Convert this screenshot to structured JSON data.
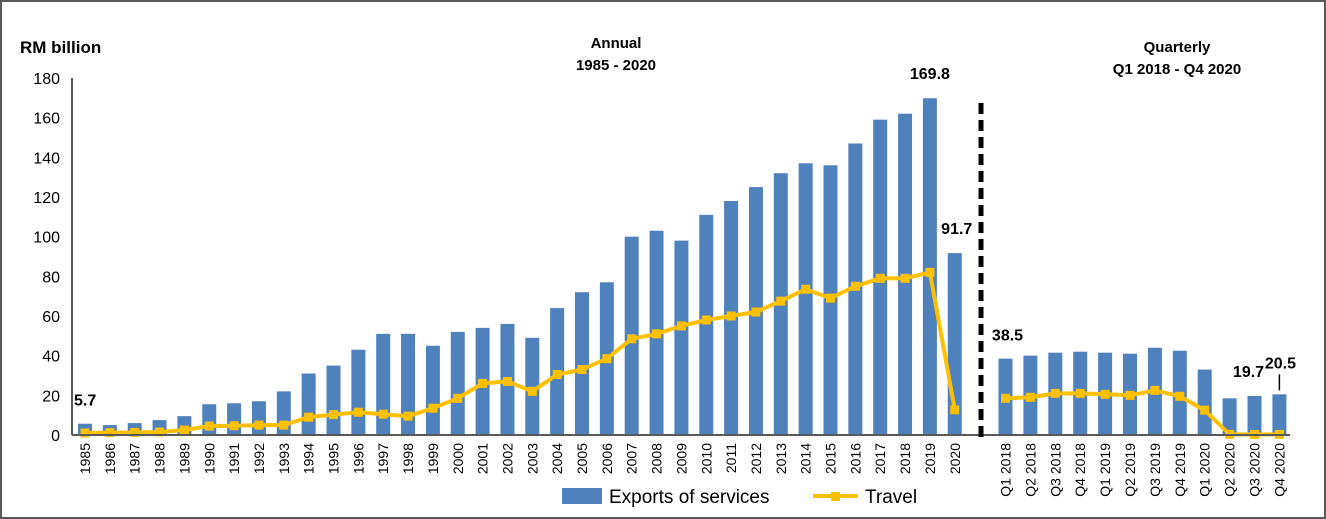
{
  "chart_data": {
    "type": "bar",
    "unit_label": "RM billion",
    "ylim": [
      0,
      180
    ],
    "yticks": [
      0,
      20,
      40,
      60,
      80,
      100,
      120,
      140,
      160,
      180
    ],
    "grid": false,
    "legend_position": "bottom-center",
    "colors": {
      "exports": "#4F81BD",
      "travel": "#FFC000",
      "divider": "#000000",
      "axis": "#595959"
    },
    "legend": [
      {
        "name": "Exports of services",
        "type": "bar"
      },
      {
        "name": "Travel",
        "type": "line-marker"
      }
    ],
    "panels": [
      {
        "id": "annual",
        "title_line1": "Annual",
        "title_line2": "1985 - 2020",
        "categories": [
          "1985",
          "1986",
          "1987",
          "1988",
          "1989",
          "1990",
          "1991",
          "1992",
          "1993",
          "1994",
          "1995",
          "1996",
          "1997",
          "1998",
          "1999",
          "2000",
          "2001",
          "2002",
          "2003",
          "2004",
          "2005",
          "2006",
          "2007",
          "2008",
          "2009",
          "2010",
          "2011",
          "2012",
          "2013",
          "2014",
          "2015",
          "2016",
          "2017",
          "2018",
          "2019",
          "2020"
        ],
        "series": [
          {
            "name": "Exports of services",
            "type": "bar",
            "values": [
              5.7,
              5.0,
              6.0,
              7.5,
              9.5,
              15.5,
              16.0,
              17.0,
              22.0,
              31.0,
              35.0,
              43.0,
              51.0,
              51.0,
              45.0,
              52.0,
              54.0,
              56.0,
              49.0,
              64.0,
              72.0,
              77.0,
              100.0,
              103.0,
              98.0,
              111.0,
              118.0,
              125.0,
              132.0,
              137.0,
              136.0,
              147.0,
              159.0,
              162.0,
              169.8,
              91.7
            ]
          },
          {
            "name": "Travel",
            "type": "line",
            "values": [
              1.0,
              1.2,
              1.3,
              1.5,
              2.5,
              4.5,
              4.7,
              5.0,
              5.0,
              9.0,
              10.3,
              11.5,
              10.5,
              9.5,
              13.5,
              18.5,
              26.0,
              27.0,
              22.0,
              30.5,
              33.0,
              38.5,
              48.5,
              51.0,
              55.0,
              58.0,
              60.0,
              62.0,
              67.5,
              73.5,
              69.0,
              75.0,
              79.0,
              79.0,
              82.0,
              12.7
            ]
          }
        ],
        "data_labels": [
          {
            "category": "1985",
            "text": "5.7"
          },
          {
            "category": "2019",
            "text": "169.8"
          },
          {
            "category": "2020",
            "text": "91.7"
          }
        ]
      },
      {
        "id": "quarterly",
        "title_line1": "Quarterly",
        "title_line2": "Q1 2018 - Q4 2020",
        "categories": [
          "Q1 2018",
          "Q2 2018",
          "Q3 2018",
          "Q4 2018",
          "Q1 2019",
          "Q2 2019",
          "Q3 2019",
          "Q4 2019",
          "Q1 2020",
          "Q2 2020",
          "Q3 2020",
          "Q4 2020"
        ],
        "series": [
          {
            "name": "Exports of services",
            "type": "bar",
            "values": [
              38.5,
              40.0,
              41.5,
              42.0,
              41.5,
              41.0,
              44.0,
              42.5,
              33.0,
              18.5,
              19.7,
              20.5
            ]
          },
          {
            "name": "Travel",
            "type": "line",
            "values": [
              18.5,
              19.0,
              21.0,
              21.0,
              20.5,
              20.0,
              22.5,
              19.5,
              12.5,
              0.3,
              0.3,
              0.3
            ]
          }
        ],
        "data_labels": [
          {
            "category": "Q1 2018",
            "text": "38.5"
          },
          {
            "category": "Q3 2020",
            "text": "19.7"
          },
          {
            "category": "Q4 2020",
            "text": "20.5"
          }
        ]
      }
    ]
  }
}
